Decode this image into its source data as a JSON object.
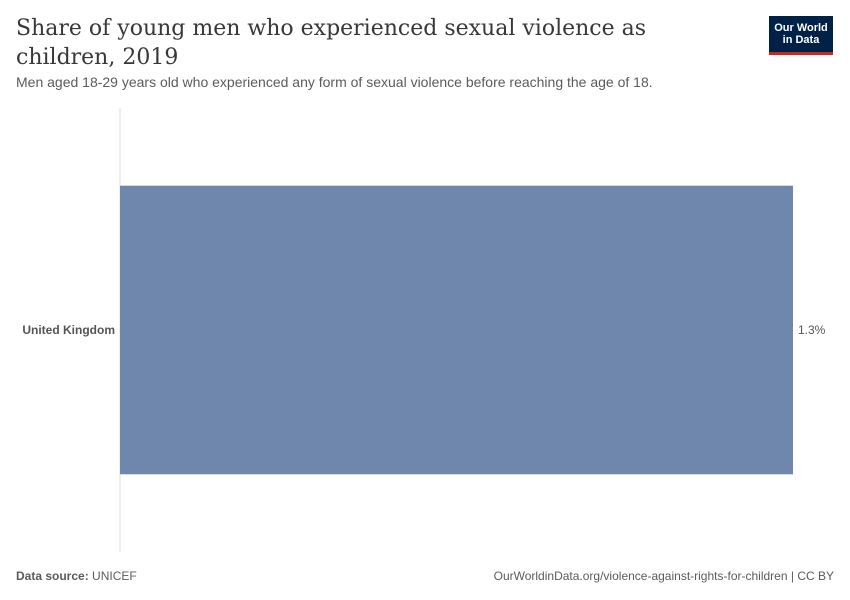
{
  "header": {
    "title": "Share of young men who experienced sexual violence as children, 2019",
    "subtitle": "Men aged 18-29 years old who experienced any form of sexual violence before reaching the age of 18.",
    "logo_line1": "Our World",
    "logo_line2": "in Data"
  },
  "chart_data": {
    "type": "bar",
    "orientation": "horizontal",
    "categories": [
      "United Kingdom"
    ],
    "values": [
      1.3
    ],
    "data_labels": [
      "1.3%"
    ],
    "xlim": [
      0,
      1.3
    ],
    "grid": false,
    "bar_color": "#6f87ad"
  },
  "footer": {
    "source_label": "Data source:",
    "source_value": "UNICEF",
    "url": "OurWorldinData.org/violence-against-rights-for-children",
    "separator": " | ",
    "license": "CC BY"
  }
}
